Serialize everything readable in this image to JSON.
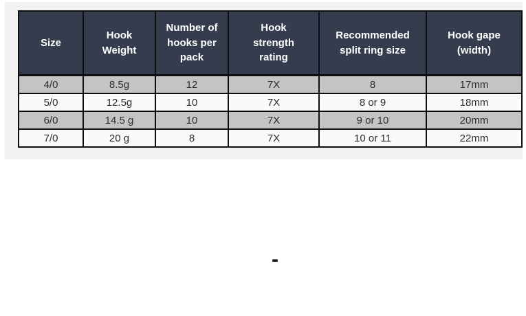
{
  "page": {
    "background_color": "#ffffff",
    "panel_background_color": "#f1f1f1"
  },
  "table": {
    "header_background_color": "#343c4e",
    "header_text_color": "#ffffff",
    "row_alt_background_color": "#c4c4c4",
    "row_plain_background_color": "#fafafa",
    "border_color": "#0e0e0e",
    "columns": [
      "Size",
      "Hook\nWeight",
      "Number of\nhooks per\npack",
      "Hook\nstrength\nrating",
      "Recommended\nsplit ring size",
      "Hook gape\n(width)"
    ],
    "rows": [
      [
        "4/0",
        "8.5g",
        "12",
        "7X",
        "8",
        "17mm"
      ],
      [
        "5/0",
        "12.5g",
        "10",
        "7X",
        "8 or 9",
        "18mm"
      ],
      [
        "6/0",
        "14.5 g",
        "10",
        "7X",
        "9 or 10",
        "20mm"
      ],
      [
        "7/0",
        "20 g",
        "8",
        "7X",
        "10 or 11",
        "22mm"
      ]
    ]
  },
  "annotation": {
    "dash": "-"
  }
}
